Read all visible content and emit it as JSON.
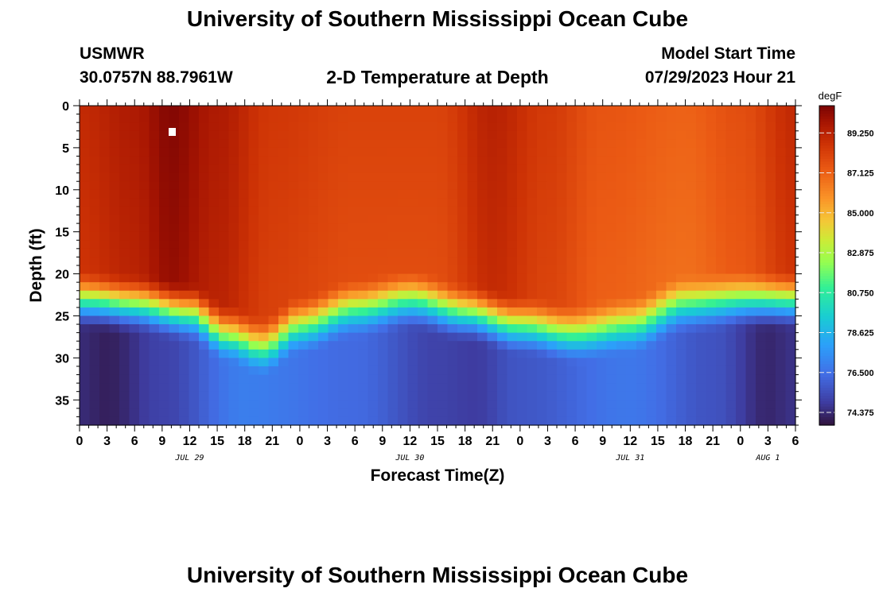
{
  "title": "University of Southern Mississippi Ocean Cube",
  "footer_title": "University of Southern Mississippi Ocean Cube",
  "station": {
    "id": "USMWR",
    "coords": "30.0757N  88.7961W"
  },
  "subtitle": "2-D Temperature at Depth",
  "model_start": {
    "label": "Model Start Time",
    "value": "07/29/2023 Hour 21"
  },
  "chart_data": {
    "type": "heatmap",
    "title": "2-D Temperature at Depth",
    "xlabel": "Forecast Time(Z)",
    "ylabel": "Depth (ft)",
    "x_hours_range": [
      0,
      78
    ],
    "y_range": [
      0,
      38
    ],
    "x_tick_labels": [
      "0",
      "3",
      "6",
      "9",
      "12",
      "15",
      "18",
      "21",
      "0",
      "3",
      "6",
      "9",
      "12",
      "15",
      "18",
      "21",
      "0",
      "3",
      "6",
      "9",
      "12",
      "15",
      "18",
      "21",
      "0",
      "3",
      "6"
    ],
    "y_ticks": [
      0,
      5,
      10,
      15,
      20,
      25,
      30,
      35
    ],
    "date_labels": [
      {
        "hour": 12,
        "text": "JUL 29"
      },
      {
        "hour": 36,
        "text": "JUL 30"
      },
      {
        "hour": 60,
        "text": "JUL 31"
      },
      {
        "hour": 75,
        "text": "AUG 1"
      }
    ],
    "colorbar": {
      "unit": "degF",
      "min": 73.7,
      "max": 90.7,
      "ticks": [
        89.25,
        87.125,
        85.0,
        82.875,
        80.75,
        78.625,
        76.5,
        74.375
      ],
      "tick_labels": [
        "89.250",
        "87.125",
        "85.000",
        "82.875",
        "80.750",
        "78.625",
        "76.500",
        "74.375"
      ]
    },
    "thermocline_depth_ft": [
      {
        "hour": 0,
        "depth": 23.5
      },
      {
        "hour": 6,
        "depth": 24
      },
      {
        "hour": 12,
        "depth": 25
      },
      {
        "hour": 16,
        "depth": 27.5
      },
      {
        "hour": 20,
        "depth": 29
      },
      {
        "hour": 24,
        "depth": 26.5
      },
      {
        "hour": 30,
        "depth": 24.5
      },
      {
        "hour": 36,
        "depth": 23.5
      },
      {
        "hour": 42,
        "depth": 25
      },
      {
        "hour": 48,
        "depth": 26.5
      },
      {
        "hour": 54,
        "depth": 27.5
      },
      {
        "hour": 60,
        "depth": 26.5
      },
      {
        "hour": 66,
        "depth": 24
      },
      {
        "hour": 72,
        "depth": 23.5
      },
      {
        "hour": 78,
        "depth": 23.5
      }
    ],
    "surface_temp_degF": [
      {
        "hour": 0,
        "temp": 89.0
      },
      {
        "hour": 6,
        "temp": 89.6
      },
      {
        "hour": 10,
        "temp": 90.5
      },
      {
        "hour": 15,
        "temp": 89.6
      },
      {
        "hour": 21,
        "temp": 88.5
      },
      {
        "hour": 30,
        "temp": 88.1
      },
      {
        "hour": 39,
        "temp": 88.1
      },
      {
        "hour": 45,
        "temp": 89.3
      },
      {
        "hour": 51,
        "temp": 88.4
      },
      {
        "hour": 57,
        "temp": 87.5
      },
      {
        "hour": 66,
        "temp": 87.1
      },
      {
        "hour": 72,
        "temp": 87.7
      },
      {
        "hour": 78,
        "temp": 89.0
      }
    ],
    "bottom_temp_degF": [
      {
        "hour": 0,
        "temp": 74.4
      },
      {
        "hour": 3,
        "temp": 74.1
      },
      {
        "hour": 9,
        "temp": 75.1
      },
      {
        "hour": 18,
        "temp": 76.9
      },
      {
        "hour": 30,
        "temp": 76.3
      },
      {
        "hour": 39,
        "temp": 75.1
      },
      {
        "hour": 43,
        "temp": 74.9
      },
      {
        "hour": 48,
        "temp": 75.7
      },
      {
        "hour": 60,
        "temp": 76.7
      },
      {
        "hour": 69,
        "temp": 75.6
      },
      {
        "hour": 75,
        "temp": 74.3
      },
      {
        "hour": 78,
        "temp": 74.6
      }
    ]
  }
}
